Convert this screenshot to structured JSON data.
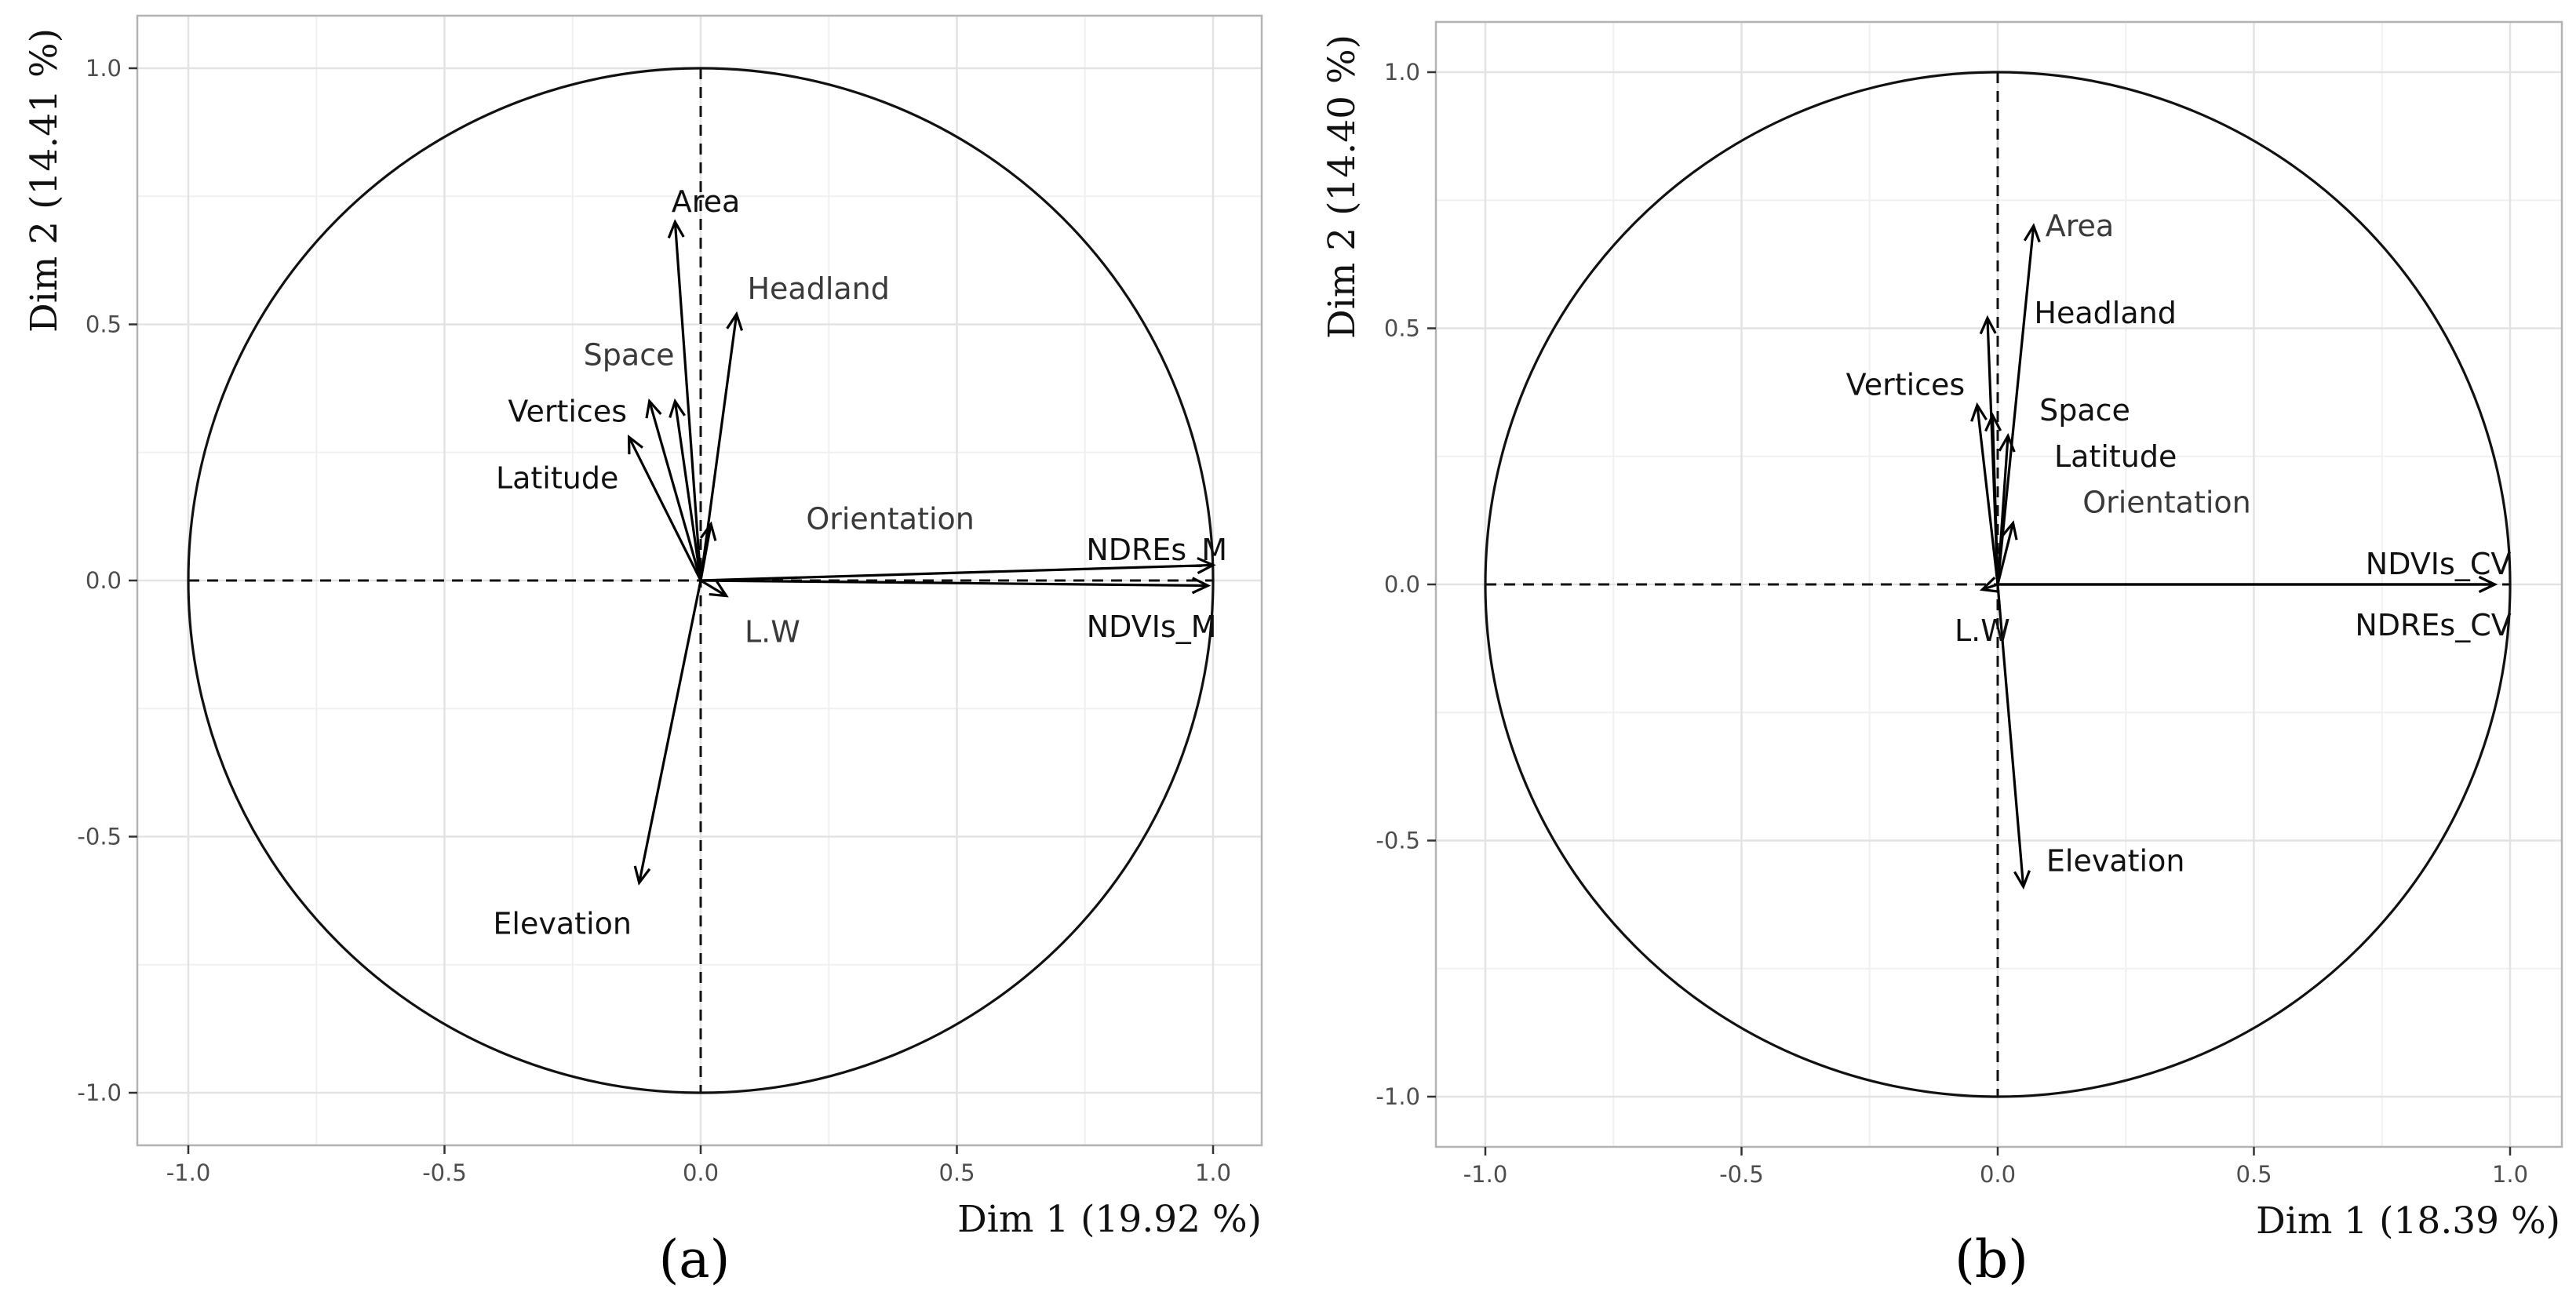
{
  "chart_data": [
    {
      "type": "scatter",
      "subtype": "pca-correlation-circle",
      "panel_label": "(a)",
      "xlabel": "Dim 1 (19.92 %)",
      "ylabel": "Dim 2 (14.41 %)",
      "xlim": [
        -1.1,
        1.1
      ],
      "ylim": [
        -1.1,
        1.1
      ],
      "x_ticks": [
        -1.0,
        -0.5,
        0.0,
        0.5,
        1.0
      ],
      "x_tick_labels": [
        "-1.0",
        "-0.5",
        "0.0",
        "0.5",
        "1.0"
      ],
      "y_ticks": [
        -1.0,
        -0.5,
        0.0,
        0.5,
        1.0
      ],
      "y_tick_labels": [
        "-1.0",
        "-0.5",
        "0.0",
        "0.5",
        "1.0"
      ],
      "grid": true,
      "unit_circle": true,
      "vectors": [
        {
          "name": "Area",
          "x": -0.05,
          "y": 0.7
        },
        {
          "name": "Headland",
          "x": 0.07,
          "y": 0.52
        },
        {
          "name": "Space",
          "x": -0.05,
          "y": 0.35
        },
        {
          "name": "Vertices",
          "x": -0.1,
          "y": 0.35
        },
        {
          "name": "Latitude",
          "x": -0.14,
          "y": 0.28
        },
        {
          "name": "Orientation",
          "x": 0.02,
          "y": 0.11
        },
        {
          "name": "NDREs_M",
          "x": 1.0,
          "y": 0.03
        },
        {
          "name": "NDVIs_M",
          "x": 0.99,
          "y": -0.01
        },
        {
          "name": "L.W",
          "x": 0.05,
          "y": -0.03
        },
        {
          "name": "Elevation",
          "x": -0.12,
          "y": -0.59
        }
      ],
      "label_positions": [
        {
          "name": "Area",
          "x": 0.01,
          "y": 0.74,
          "anchor": "middle",
          "style": "bold"
        },
        {
          "name": "Headland",
          "x": 0.23,
          "y": 0.57,
          "anchor": "middle",
          "style": "light"
        },
        {
          "name": "Space",
          "x": -0.14,
          "y": 0.44,
          "anchor": "middle",
          "style": "light"
        },
        {
          "name": "Vertices",
          "x": -0.26,
          "y": 0.33,
          "anchor": "middle",
          "style": "bold"
        },
        {
          "name": "Latitude",
          "x": -0.28,
          "y": 0.2,
          "anchor": "middle",
          "style": "bold"
        },
        {
          "name": "Orientation",
          "x": 0.37,
          "y": 0.12,
          "anchor": "middle",
          "style": "light"
        },
        {
          "name": "NDREs_M",
          "x": 0.89,
          "y": 0.06,
          "anchor": "middle",
          "style": "bold"
        },
        {
          "name": "NDVIs_M",
          "x": 0.88,
          "y": -0.09,
          "anchor": "middle",
          "style": "bold"
        },
        {
          "name": "L.W",
          "x": 0.14,
          "y": -0.1,
          "anchor": "middle",
          "style": "light"
        },
        {
          "name": "Elevation",
          "x": -0.27,
          "y": -0.67,
          "anchor": "middle",
          "style": "bold"
        }
      ]
    },
    {
      "type": "scatter",
      "subtype": "pca-correlation-circle",
      "panel_label": "(b)",
      "xlabel": "Dim 1 (18.39 %)",
      "ylabel": "Dim 2 (14.40 %)",
      "xlim": [
        -1.1,
        1.1
      ],
      "ylim": [
        -1.1,
        1.1
      ],
      "x_ticks": [
        -1.0,
        -0.5,
        0.0,
        0.5,
        1.0
      ],
      "x_tick_labels": [
        "-1.0",
        "-0.5",
        "0.0",
        "0.5",
        "1.0"
      ],
      "y_ticks": [
        -1.0,
        -0.5,
        0.0,
        0.5,
        1.0
      ],
      "y_tick_labels": [
        "-1.0",
        "-0.5",
        "0.0",
        "0.5",
        "1.0"
      ],
      "grid": true,
      "unit_circle": true,
      "vectors": [
        {
          "name": "Area",
          "x": 0.07,
          "y": 0.7
        },
        {
          "name": "Headland",
          "x": -0.02,
          "y": 0.52
        },
        {
          "name": "Space",
          "x": -0.01,
          "y": 0.33
        },
        {
          "name": "Vertices",
          "x": -0.04,
          "y": 0.35
        },
        {
          "name": "Latitude",
          "x": 0.02,
          "y": 0.29
        },
        {
          "name": "Orientation",
          "x": 0.03,
          "y": 0.12
        },
        {
          "name": "NDVIs_CV",
          "x": 0.97,
          "y": 0.0
        },
        {
          "name": "NDREs_CV",
          "x": 0.97,
          "y": 0.0
        },
        {
          "name": "L.W",
          "x": -0.03,
          "y": -0.01
        },
        {
          "name": "Elevation",
          "x": 0.05,
          "y": -0.59
        }
      ],
      "label_positions": [
        {
          "name": "Area",
          "x": 0.16,
          "y": 0.7,
          "anchor": "middle",
          "style": "light"
        },
        {
          "name": "Headland",
          "x": 0.21,
          "y": 0.53,
          "anchor": "middle",
          "style": "bold"
        },
        {
          "name": "Space",
          "x": 0.17,
          "y": 0.34,
          "anchor": "middle",
          "style": "bold"
        },
        {
          "name": "Vertices",
          "x": -0.18,
          "y": 0.39,
          "anchor": "middle",
          "style": "bold"
        },
        {
          "name": "Latitude",
          "x": 0.23,
          "y": 0.25,
          "anchor": "middle",
          "style": "bold"
        },
        {
          "name": "Orientation",
          "x": 0.33,
          "y": 0.16,
          "anchor": "middle",
          "style": "light"
        },
        {
          "name": "NDVIs_CV",
          "x": 0.86,
          "y": 0.04,
          "anchor": "middle",
          "style": "bold"
        },
        {
          "name": "NDREs_CV",
          "x": 0.85,
          "y": -0.08,
          "anchor": "middle",
          "style": "bold"
        },
        {
          "name": "L.W",
          "x": -0.03,
          "y": -0.09,
          "anchor": "middle",
          "style": "bold"
        },
        {
          "name": "Elevation",
          "x": 0.23,
          "y": -0.54,
          "anchor": "middle",
          "style": "bold"
        }
      ]
    }
  ]
}
